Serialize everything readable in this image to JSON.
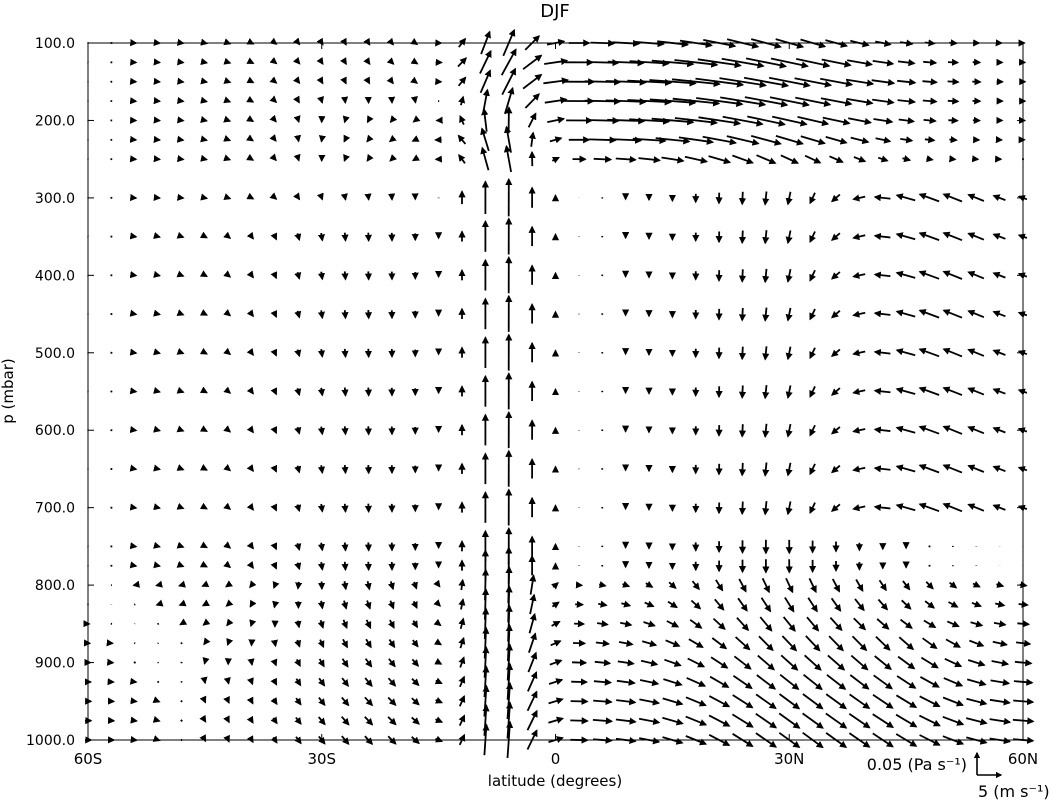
{
  "chart_data": {
    "type": "quiver",
    "title": "DJF",
    "xlabel": "latitude (degrees)",
    "ylabel": "p (mbar)",
    "xlim": [
      -60,
      60
    ],
    "ylim": [
      1000,
      100
    ],
    "y_inverted": true,
    "x_ticks": [
      {
        "value": -60,
        "label": "60S"
      },
      {
        "value": -30,
        "label": "30S"
      },
      {
        "value": 0,
        "label": "0"
      },
      {
        "value": 30,
        "label": "30N"
      },
      {
        "value": 60,
        "label": "60N"
      }
    ],
    "y_ticks": [
      {
        "value": 100,
        "label": "100.0"
      },
      {
        "value": 200,
        "label": "200.0"
      },
      {
        "value": 300,
        "label": "300.0"
      },
      {
        "value": 400,
        "label": "400.0"
      },
      {
        "value": 500,
        "label": "500.0"
      },
      {
        "value": 600,
        "label": "600.0"
      },
      {
        "value": 700,
        "label": "700.0"
      },
      {
        "value": 800,
        "label": "800.0"
      },
      {
        "value": 900,
        "label": "900.0"
      },
      {
        "value": 1000,
        "label": "1000.0"
      }
    ],
    "x_values": [
      -60,
      -57,
      -54,
      -51,
      -48,
      -45,
      -42,
      -39,
      -36,
      -33,
      -30,
      -27,
      -24,
      -21,
      -18,
      -15,
      -12,
      -9,
      -6,
      -3,
      0,
      3,
      6,
      9,
      12,
      15,
      18,
      21,
      24,
      27,
      30,
      33,
      36,
      39,
      42,
      45,
      48,
      51,
      54,
      57,
      60
    ],
    "pressure_levels": [
      100,
      125,
      150,
      175,
      200,
      225,
      250,
      300,
      350,
      400,
      450,
      500,
      550,
      600,
      650,
      700,
      750,
      775,
      800,
      825,
      850,
      875,
      900,
      925,
      950,
      975,
      1000
    ],
    "reference_arrows": [
      {
        "component": "vertical",
        "value": 0.05,
        "label": "0.05 (Pa s⁻¹)"
      },
      {
        "component": "horizontal",
        "value": 5,
        "label": "5 (m s⁻¹)"
      }
    ]
  }
}
